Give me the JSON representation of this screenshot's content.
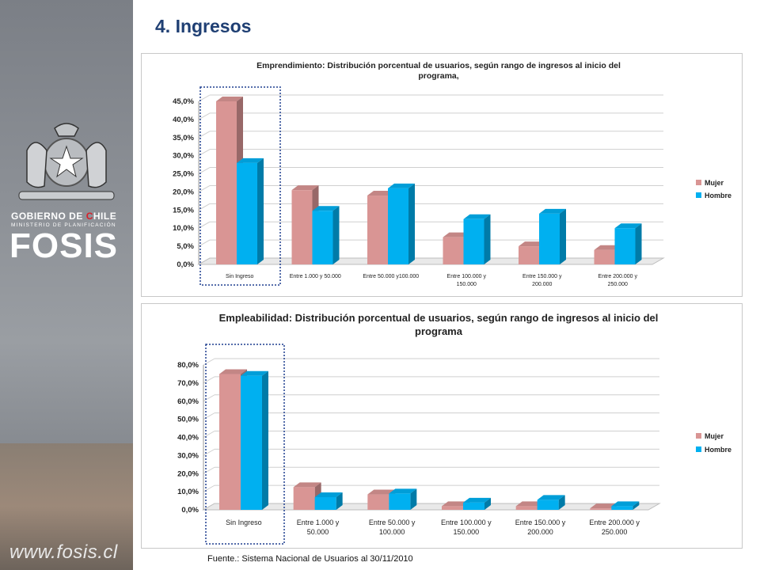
{
  "page": {
    "title": "4. Ingresos",
    "footer": "Fuente.: Sistema Nacional de Usuarios al 30/11/2010"
  },
  "sidebar": {
    "gob_part1": "GOBIERNO DE ",
    "gob_c": "C",
    "gob_part2": "HILE",
    "ministry": "MINISTERIO DE PLANIFICACIÓN",
    "brand": "FOSIS",
    "url": "www.fosis.cl"
  },
  "colors": {
    "mujer": "#d99594",
    "hombre": "#00b0f0",
    "title": "#1f3f73",
    "highlight": "#1f3f8f"
  },
  "chart_data": [
    {
      "type": "bar",
      "title": "Emprendimiento: Distribución porcentual de usuarios, según rango de ingresos al inicio del programa,",
      "title_lines": [
        "Emprendimiento: Distribución porcentual de usuarios, según rango de ingresos al inicio del",
        "programa,"
      ],
      "categories": [
        "Sin Ingreso",
        "Entre 1.000 y 50.000",
        "Entre 50.000 y100.000",
        "Entre 100.000 y 150.000",
        "Entre 150.000 y 200.000",
        "Entre 200.000 y 250.000"
      ],
      "category_lines": [
        [
          "Sin Ingreso"
        ],
        [
          "Entre 1.000 y 50.000"
        ],
        [
          "Entre 50.000 y100.000"
        ],
        [
          "Entre 100.000 y",
          "150.000"
        ],
        [
          "Entre 150.000 y",
          "200.000"
        ],
        [
          "Entre 200.000 y",
          "250.000"
        ]
      ],
      "series": [
        {
          "name": "Mujer",
          "values": [
            45.0,
            20.5,
            19.0,
            7.5,
            5.0,
            4.0
          ]
        },
        {
          "name": "Hombre",
          "values": [
            28.0,
            14.8,
            21.0,
            12.5,
            14.0,
            10.0
          ]
        }
      ],
      "ylim": [
        0,
        45
      ],
      "yticks": [
        "0,0%",
        "5,0%",
        "10,0%",
        "15,0%",
        "20,0%",
        "25,0%",
        "30,0%",
        "35,0%",
        "40,0%",
        "45,0%"
      ],
      "grid": true,
      "legend": "right",
      "highlighted_category": "Sin Ingreso"
    },
    {
      "type": "bar",
      "title": "Empleabilidad: Distribución porcentual de usuarios, según rango de ingresos al inicio del programa",
      "title_lines": [
        "Empleabilidad: Distribución porcentual de usuarios, según rango de ingresos al inicio del",
        "programa"
      ],
      "categories": [
        "Sin Ingreso",
        "Entre 1.000 y 50.000",
        "Entre 50.000 y 100.000",
        "Entre 100.000 y 150.000",
        "Entre 150.000 y 200.000",
        "Entre 200.000 y 250.000"
      ],
      "category_lines": [
        [
          "Sin Ingreso"
        ],
        [
          "Entre 1.000 y",
          "50.000"
        ],
        [
          "Entre 50.000 y",
          "100.000"
        ],
        [
          "Entre 100.000 y",
          "150.000"
        ],
        [
          "Entre 150.000 y",
          "200.000"
        ],
        [
          "Entre 200.000 y",
          "250.000"
        ]
      ],
      "series": [
        {
          "name": "Mujer",
          "values": [
            75.0,
            12.5,
            8.5,
            2.0,
            2.0,
            0.8
          ]
        },
        {
          "name": "Hombre",
          "values": [
            74.0,
            7.0,
            9.0,
            4.0,
            5.5,
            2.0
          ]
        }
      ],
      "ylim": [
        0,
        80
      ],
      "yticks": [
        "0,0%",
        "10,0%",
        "20,0%",
        "30,0%",
        "40,0%",
        "50,0%",
        "60,0%",
        "70,0%",
        "80,0%"
      ],
      "grid": true,
      "legend": "right",
      "highlighted_category": "Sin Ingreso"
    }
  ]
}
